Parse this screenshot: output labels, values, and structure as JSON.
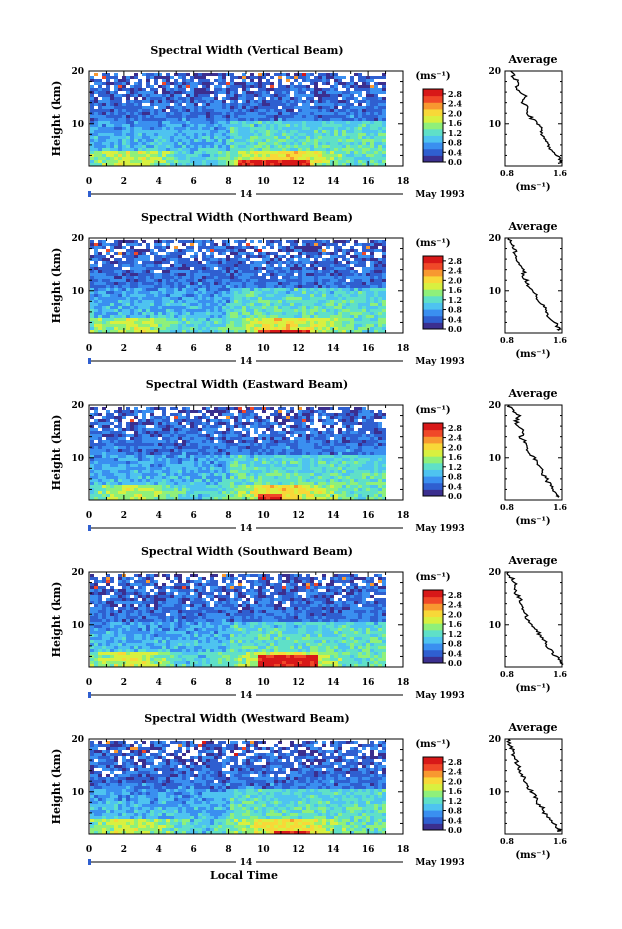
{
  "figure": {
    "date_label": "May 1993",
    "xlabel": "Local Time",
    "day_label": "14"
  },
  "colorbar": {
    "unit": "(ms⁻¹)",
    "ticks": [
      "2.8",
      "2.4",
      "2.0",
      "1.6",
      "1.2",
      "0.8",
      "0.4",
      "0.0"
    ],
    "range": [
      0.0,
      3.0
    ],
    "colors": [
      "#3b2f8f",
      "#2f5fd0",
      "#3a8ff0",
      "#4ec3f0",
      "#5fe0c8",
      "#8ff07a",
      "#d8f040",
      "#f8d838",
      "#f89830",
      "#f04828",
      "#d81818"
    ]
  },
  "chart_data": [
    {
      "type": "heatmap",
      "title": "Spectral Width (Vertical Beam)",
      "ylabel": "Height (km)",
      "xlim": [
        0,
        18
      ],
      "ylim": [
        2,
        20
      ],
      "xticks": [
        "0",
        "2",
        "4",
        "6",
        "8",
        "10",
        "12",
        "14",
        "16",
        "18"
      ],
      "yticks": [
        "10",
        "20"
      ],
      "data_xrange": [
        0,
        17
      ],
      "hot_band": {
        "x": [
          8.5,
          12.5
        ],
        "y": [
          2,
          3.5
        ]
      },
      "average": {
        "title": "Average",
        "xlabel": "(ms⁻¹)",
        "xlim": [
          0.8,
          1.6
        ],
        "ylim": [
          2,
          20
        ],
        "xticks": [
          "0.8",
          "1.6"
        ],
        "yticks": [
          "10",
          "20"
        ],
        "height": [
          2.5,
          3,
          4,
          5,
          6,
          7,
          8,
          9,
          10,
          11,
          12,
          13,
          14,
          15,
          16,
          17,
          18,
          19,
          20
        ],
        "value": [
          1.55,
          1.58,
          1.53,
          1.45,
          1.4,
          1.38,
          1.3,
          1.32,
          1.25,
          1.18,
          1.12,
          1.12,
          1.05,
          1.1,
          1.0,
          0.95,
          0.98,
          0.92,
          0.88
        ]
      }
    },
    {
      "type": "heatmap",
      "title": "Spectral Width (Northward Beam)",
      "ylabel": "Height (km)",
      "xlim": [
        0,
        18
      ],
      "ylim": [
        2,
        20
      ],
      "xticks": [
        "0",
        "2",
        "4",
        "6",
        "8",
        "10",
        "12",
        "14",
        "16",
        "18"
      ],
      "yticks": [
        "10",
        "20"
      ],
      "data_xrange": [
        0,
        17
      ],
      "hot_band": {
        "x": [
          9.5,
          12.5
        ],
        "y": [
          2,
          3
        ]
      },
      "average": {
        "title": "Average",
        "xlabel": "(ms⁻¹)",
        "xlim": [
          0.8,
          1.6
        ],
        "ylim": [
          2,
          20
        ],
        "xticks": [
          "0.8",
          "1.6"
        ],
        "yticks": [
          "10",
          "20"
        ],
        "height": [
          2.5,
          3,
          4,
          5,
          6,
          7,
          8,
          9,
          10,
          11,
          12,
          13,
          14,
          15,
          16,
          17,
          18,
          19,
          20
        ],
        "value": [
          1.58,
          1.55,
          1.5,
          1.42,
          1.38,
          1.35,
          1.28,
          1.25,
          1.2,
          1.12,
          1.1,
          1.05,
          1.08,
          1.0,
          0.98,
          0.95,
          0.92,
          0.88,
          0.85
        ]
      }
    },
    {
      "type": "heatmap",
      "title": "Spectral Width (Eastward Beam)",
      "ylabel": "Height (km)",
      "xlim": [
        0,
        18
      ],
      "ylim": [
        2,
        20
      ],
      "xticks": [
        "0",
        "2",
        "4",
        "6",
        "8",
        "10",
        "12",
        "14",
        "16",
        "18"
      ],
      "yticks": [
        "10",
        "20"
      ],
      "data_xrange": [
        0,
        17
      ],
      "hot_band": {
        "x": [
          9.5,
          11
        ],
        "y": [
          2.5,
          3.5
        ]
      },
      "average": {
        "title": "Average",
        "xlabel": "(ms⁻¹)",
        "xlim": [
          0.8,
          1.6
        ],
        "ylim": [
          2,
          20
        ],
        "xticks": [
          "0.8",
          "1.6"
        ],
        "yticks": [
          "10",
          "20"
        ],
        "height": [
          2.5,
          3,
          4,
          5,
          6,
          7,
          8,
          9,
          10,
          11,
          12,
          13,
          14,
          15,
          16,
          17,
          18,
          19,
          20
        ],
        "value": [
          1.55,
          1.52,
          1.48,
          1.42,
          1.38,
          1.33,
          1.3,
          1.25,
          1.2,
          1.15,
          1.1,
          1.08,
          1.02,
          1.05,
          0.98,
          0.95,
          1.0,
          0.9,
          0.86
        ]
      }
    },
    {
      "type": "heatmap",
      "title": "Spectral Width (Southward Beam)",
      "ylabel": "Height (km)",
      "xlim": [
        0,
        18
      ],
      "ylim": [
        2,
        20
      ],
      "xticks": [
        "0",
        "2",
        "4",
        "6",
        "8",
        "10",
        "12",
        "14",
        "16",
        "18"
      ],
      "yticks": [
        "10",
        "20"
      ],
      "data_xrange": [
        0,
        17
      ],
      "hot_band": {
        "x": [
          9.5,
          13
        ],
        "y": [
          2,
          4.5
        ]
      },
      "average": {
        "title": "Average",
        "xlabel": "(ms⁻¹)",
        "xlim": [
          0.8,
          1.6
        ],
        "ylim": [
          2,
          20
        ],
        "xticks": [
          "0.8",
          "1.6"
        ],
        "yticks": [
          "10",
          "20"
        ],
        "height": [
          2.5,
          3,
          4,
          5,
          6,
          7,
          8,
          9,
          10,
          11,
          12,
          13,
          14,
          15,
          16,
          17,
          18,
          19,
          20
        ],
        "value": [
          1.6,
          1.58,
          1.52,
          1.45,
          1.4,
          1.35,
          1.28,
          1.25,
          1.18,
          1.12,
          1.08,
          1.05,
          1.0,
          1.02,
          0.95,
          0.92,
          0.95,
          0.88,
          0.85
        ]
      }
    },
    {
      "type": "heatmap",
      "title": "Spectral Width (Westward Beam)",
      "ylabel": "Height (km)",
      "xlim": [
        0,
        18
      ],
      "ylim": [
        2,
        20
      ],
      "xticks": [
        "0",
        "2",
        "4",
        "6",
        "8",
        "10",
        "12",
        "14",
        "16",
        "18"
      ],
      "yticks": [
        "10",
        "20"
      ],
      "data_xrange": [
        0,
        17
      ],
      "hot_band": {
        "x": [
          10.5,
          12.5
        ],
        "y": [
          2,
          3
        ]
      },
      "average": {
        "title": "Average",
        "xlabel": "(ms⁻¹)",
        "xlim": [
          0.8,
          1.6
        ],
        "ylim": [
          2,
          20
        ],
        "xticks": [
          "0.8",
          "1.6"
        ],
        "yticks": [
          "10",
          "20"
        ],
        "height": [
          2.5,
          3,
          4,
          5,
          6,
          7,
          8,
          9,
          10,
          11,
          12,
          13,
          14,
          15,
          16,
          17,
          18,
          19,
          20
        ],
        "value": [
          1.56,
          1.55,
          1.5,
          1.42,
          1.35,
          1.32,
          1.25,
          1.22,
          1.18,
          1.12,
          1.08,
          1.05,
          1.02,
          0.98,
          0.95,
          0.92,
          0.9,
          0.87,
          0.84
        ]
      }
    }
  ]
}
